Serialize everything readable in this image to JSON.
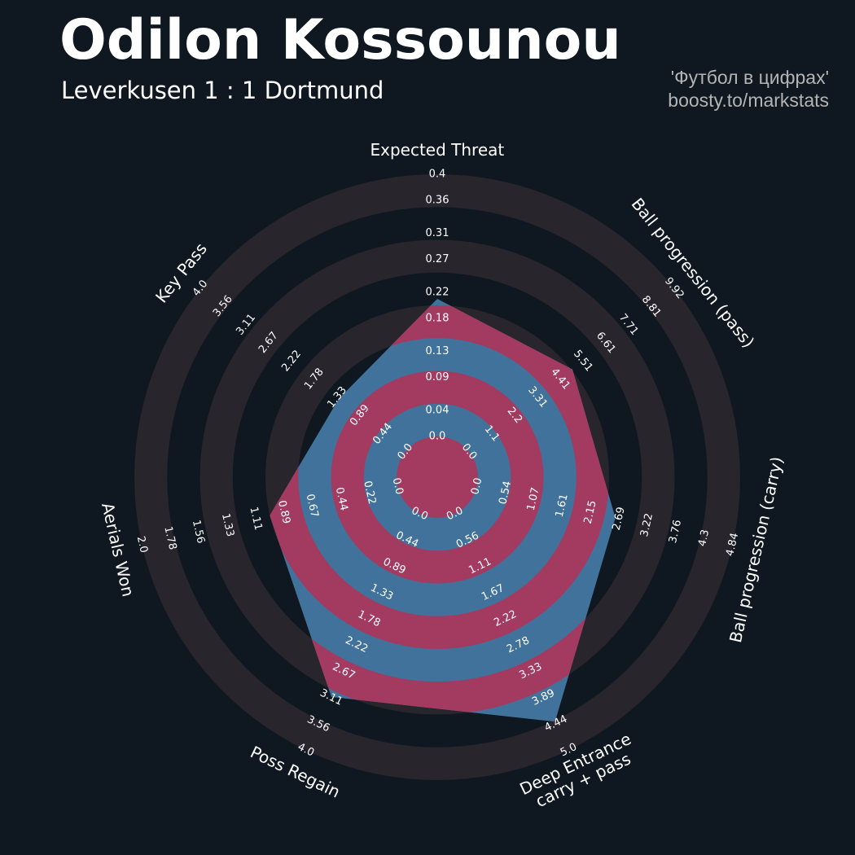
{
  "chart_data": {
    "type": "radar",
    "title": "Odilon Kossounou",
    "subtitle": "Leverkusen 1 : 1 Dortmund",
    "credits": [
      "'Футбол в цифрах'",
      "boosty.to/markstats"
    ],
    "background": "#0f1820",
    "ring_color": "#28252c",
    "highlight_color": "#a33b60",
    "axes": [
      {
        "label": "Expected Threat",
        "lim": [
          0,
          0.4
        ],
        "ticks": [
          {
            "value": 0,
            "label": "0.0"
          },
          0.04,
          0.09,
          0.13,
          0.18,
          0.22,
          0.27,
          0.31,
          0.36,
          0.4
        ]
      },
      {
        "label": "Ball progression (pass)",
        "lim": [
          0,
          9.92
        ],
        "ticks": [
          {
            "value": 0,
            "label": "0.0"
          },
          1.1,
          2.2,
          3.31,
          4.41,
          5.51,
          6.61,
          7.71,
          8.81,
          9.92
        ]
      },
      {
        "label": "Ball progression (carry)",
        "lim": [
          0,
          4.84
        ],
        "ticks": [
          {
            "value": 0,
            "label": "0.0"
          },
          0.54,
          1.07,
          1.61,
          2.15,
          2.69,
          3.22,
          3.76,
          4.3,
          4.84
        ]
      },
      {
        "label": "Deep Entrance\ncarry + pass",
        "lim": [
          0,
          5
        ],
        "ticks": [
          {
            "value": 0,
            "label": "0.0"
          },
          0.56,
          1.11,
          1.67,
          2.22,
          2.78,
          3.33,
          3.89,
          4.44,
          {
            "value": 5,
            "label": "5.0"
          }
        ]
      },
      {
        "label": "Poss Regain",
        "lim": [
          0,
          4
        ],
        "ticks": [
          {
            "value": 0,
            "label": "0.0"
          },
          0.44,
          0.89,
          1.33,
          1.78,
          2.22,
          2.67,
          3.11,
          3.56,
          {
            "value": 4,
            "label": "4.0"
          }
        ]
      },
      {
        "label": "Aerials Won",
        "lim": [
          0,
          2
        ],
        "ticks": [
          {
            "value": 0,
            "label": "0.0"
          },
          0.22,
          0.44,
          0.67,
          0.89,
          1.11,
          1.33,
          1.56,
          1.78,
          {
            "value": 2,
            "label": "2.0"
          }
        ]
      },
      {
        "label": "Key Pass",
        "lim": [
          0,
          4
        ],
        "ticks": [
          {
            "value": 0,
            "label": "0.0"
          },
          0.44,
          0.89,
          1.33,
          1.78,
          2.22,
          2.67,
          3.11,
          3.56,
          {
            "value": 4,
            "label": "4.0"
          }
        ]
      }
    ],
    "series": [
      {
        "color": "#41729b",
        "values": [
          0.21,
          5.0,
          2.62,
          4.4,
          3.1,
          1.0,
          1.3
        ]
      }
    ]
  }
}
